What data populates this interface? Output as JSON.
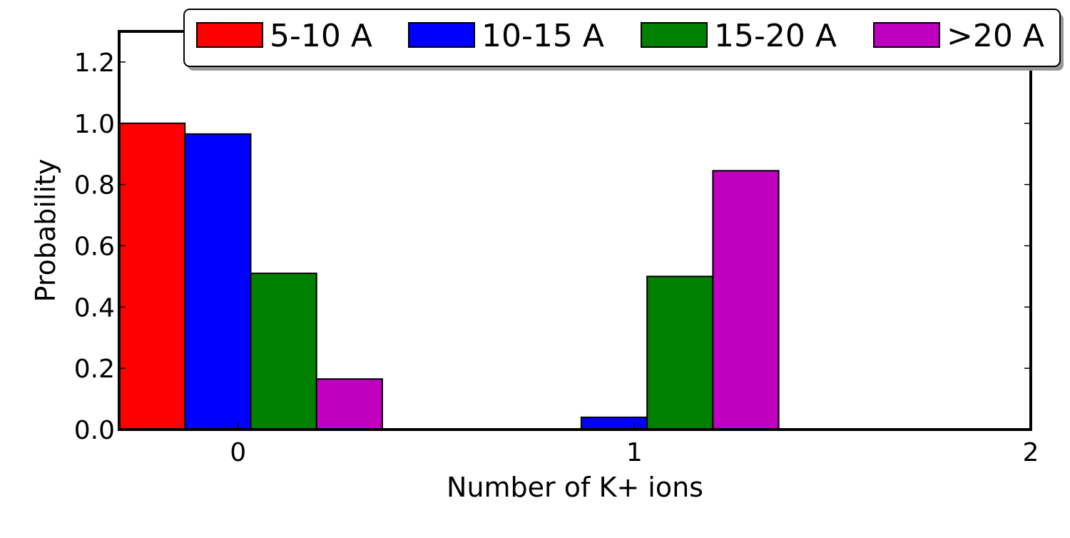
{
  "chart_data": {
    "type": "bar",
    "title": "",
    "xlabel": "Number of K+ ions",
    "ylabel": "Probability",
    "x_ticks": [
      0,
      1,
      2
    ],
    "x_tick_labels": [
      "0",
      "1",
      "2"
    ],
    "xlim": [
      -0.3,
      2.0
    ],
    "ylim": [
      0,
      1.3
    ],
    "y_ticks": [
      0.0,
      0.2,
      0.4,
      0.6,
      0.8,
      1.0,
      1.2
    ],
    "y_tick_labels": [
      "0.0",
      "0.2",
      "0.4",
      "0.6",
      "0.8",
      "1.0",
      "1.2"
    ],
    "bar_width": 0.166,
    "categories": [
      0,
      1
    ],
    "series": [
      {
        "name": "5-10 A",
        "color": "#ff0000",
        "offset": -0.3,
        "values": [
          1.0,
          0.0
        ]
      },
      {
        "name": "10-15 A",
        "color": "#0000ff",
        "offset": -0.134,
        "values": [
          0.965,
          0.04
        ]
      },
      {
        "name": "15-20 A",
        "color": "#008000",
        "offset": 0.032,
        "values": [
          0.51,
          0.5
        ]
      },
      {
        "name": ">20 A",
        "color": "#bf00bf",
        "offset": 0.198,
        "values": [
          0.165,
          0.845
        ]
      }
    ],
    "grid": false,
    "legend_position": "top"
  }
}
